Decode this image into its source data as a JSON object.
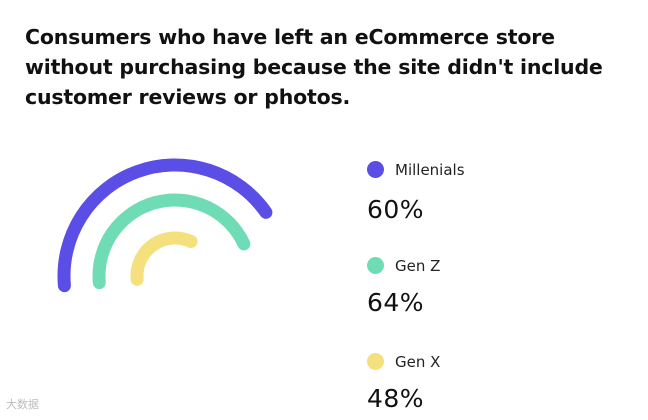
{
  "title_lines": [
    "Consumers who have left an eCommerce store",
    "without  purchasing because the site didn't include",
    "customer  reviews or photos."
  ],
  "chart_data": {
    "type": "radial-bar",
    "title": "Consumers who have left an eCommerce store without  purchasing because the site didn't include customer  reviews or photos.",
    "unit": "%",
    "series": [
      {
        "name": "Millenials",
        "value": 60,
        "label": "60%",
        "color": "#5a4ee6"
      },
      {
        "name": "Gen Z",
        "value": 64,
        "label": "64%",
        "color": "#6fdcb6"
      },
      {
        "name": "Gen X",
        "value": 48,
        "label": "48%",
        "color": "#f5e07e"
      }
    ]
  },
  "watermark": "大数据"
}
